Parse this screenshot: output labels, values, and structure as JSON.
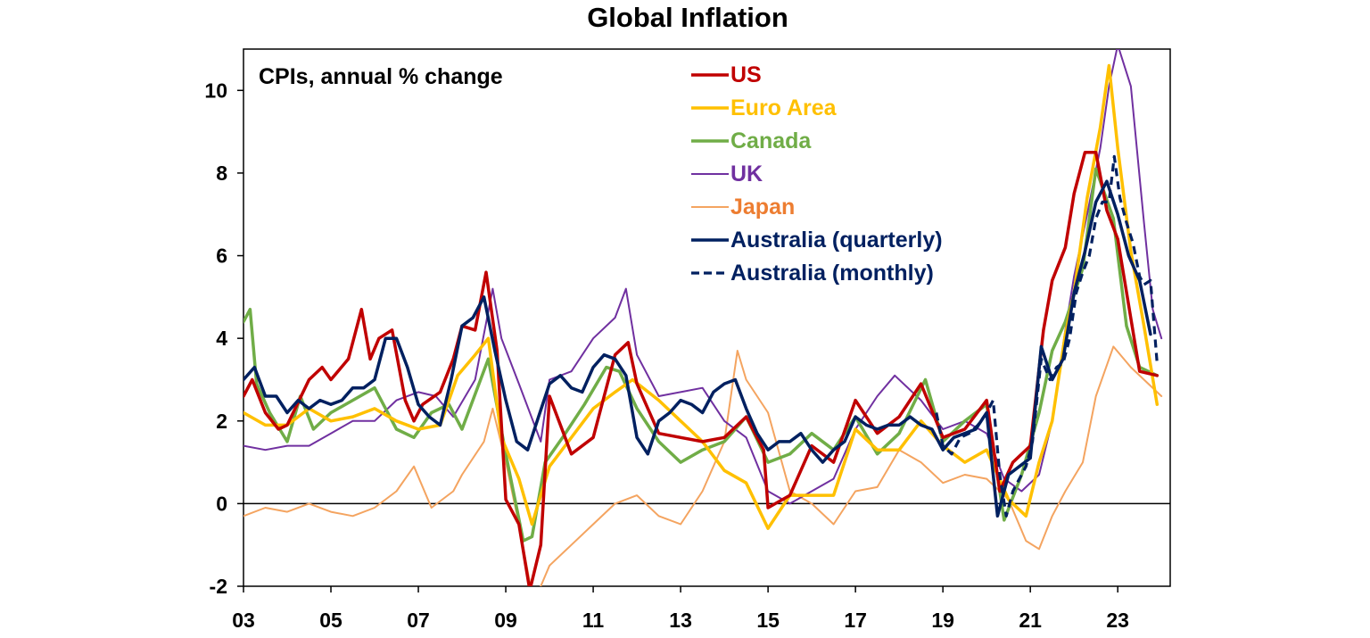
{
  "chart_data": {
    "type": "line",
    "title": "Global Inflation",
    "subtitle": "CPIs, annual % change",
    "xlabel": "",
    "ylabel": "",
    "x_range": [
      2003.0,
      2024.2
    ],
    "ylim": [
      -2,
      11
    ],
    "y_ticks": [
      -2,
      0,
      2,
      4,
      6,
      8,
      10
    ],
    "x_ticks": [
      {
        "value": 2003,
        "label": "03"
      },
      {
        "value": 2005,
        "label": "05"
      },
      {
        "value": 2007,
        "label": "07"
      },
      {
        "value": 2009,
        "label": "09"
      },
      {
        "value": 2011,
        "label": "11"
      },
      {
        "value": 2013,
        "label": "13"
      },
      {
        "value": 2015,
        "label": "15"
      },
      {
        "value": 2017,
        "label": "17"
      },
      {
        "value": 2019,
        "label": "19"
      },
      {
        "value": 2021,
        "label": "21"
      },
      {
        "value": 2023,
        "label": "23"
      }
    ],
    "grid": false,
    "legend_position": "top-center",
    "series": [
      {
        "name": "US",
        "color": "#c00000",
        "dash": false,
        "width": 3.5,
        "x": [
          2003.0,
          2003.2,
          2003.5,
          2003.8,
          2004.0,
          2004.5,
          2004.8,
          2005.0,
          2005.4,
          2005.7,
          2005.9,
          2006.1,
          2006.4,
          2006.7,
          2006.9,
          2007.1,
          2007.5,
          2007.8,
          2008.0,
          2008.3,
          2008.55,
          2008.8,
          2009.0,
          2009.3,
          2009.55,
          2009.8,
          2010.0,
          2010.5,
          2011.0,
          2011.5,
          2011.8,
          2012.0,
          2012.5,
          2013.0,
          2013.5,
          2014.0,
          2014.5,
          2014.9,
          2015.0,
          2015.5,
          2016.0,
          2016.5,
          2017.0,
          2017.5,
          2018.0,
          2018.5,
          2019.0,
          2019.5,
          2020.0,
          2020.3,
          2020.6,
          2021.0,
          2021.3,
          2021.5,
          2021.8,
          2022.0,
          2022.25,
          2022.5,
          2022.75,
          2023.0,
          2023.5,
          2023.9
        ],
        "y": [
          2.6,
          3.0,
          2.2,
          1.8,
          1.9,
          3.0,
          3.3,
          3.0,
          3.5,
          4.7,
          3.5,
          4.0,
          4.2,
          2.5,
          2.0,
          2.4,
          2.7,
          3.5,
          4.3,
          4.2,
          5.6,
          3.7,
          0.1,
          -0.5,
          -2.1,
          -1.0,
          2.6,
          1.2,
          1.6,
          3.6,
          3.9,
          2.9,
          1.7,
          1.6,
          1.5,
          1.6,
          2.1,
          1.3,
          -0.1,
          0.2,
          1.4,
          1.0,
          2.5,
          1.7,
          2.1,
          2.9,
          1.6,
          1.8,
          2.5,
          0.3,
          1.0,
          1.4,
          4.2,
          5.4,
          6.2,
          7.5,
          8.5,
          8.5,
          7.1,
          6.4,
          3.2,
          3.1
        ]
      },
      {
        "name": "Euro Area",
        "color": "#ffc000",
        "dash": false,
        "width": 3.5,
        "x": [
          2003.0,
          2003.5,
          2004.0,
          2004.5,
          2005.0,
          2005.5,
          2006.0,
          2006.5,
          2007.0,
          2007.5,
          2007.9,
          2008.3,
          2008.6,
          2008.9,
          2009.3,
          2009.6,
          2010.0,
          2010.5,
          2011.0,
          2011.5,
          2011.9,
          2012.5,
          2013.0,
          2013.5,
          2014.0,
          2014.5,
          2015.0,
          2015.5,
          2016.0,
          2016.5,
          2017.0,
          2017.5,
          2018.0,
          2018.5,
          2019.0,
          2019.5,
          2020.0,
          2020.5,
          2020.9,
          2021.2,
          2021.5,
          2021.8,
          2022.0,
          2022.3,
          2022.6,
          2022.8,
          2023.0,
          2023.3,
          2023.6,
          2023.9
        ],
        "y": [
          2.2,
          1.9,
          1.9,
          2.3,
          2.0,
          2.1,
          2.3,
          2.0,
          1.8,
          1.9,
          3.1,
          3.6,
          4.0,
          1.6,
          0.6,
          -0.5,
          0.9,
          1.6,
          2.3,
          2.7,
          3.0,
          2.5,
          2.0,
          1.5,
          0.8,
          0.5,
          -0.6,
          0.2,
          0.2,
          0.2,
          1.8,
          1.3,
          1.3,
          2.0,
          1.4,
          1.0,
          1.3,
          0.1,
          -0.3,
          1.0,
          2.0,
          4.1,
          5.1,
          7.4,
          9.1,
          10.6,
          8.6,
          6.1,
          4.3,
          2.4
        ]
      },
      {
        "name": "Canada",
        "color": "#70ad47",
        "dash": false,
        "width": 3.5,
        "x": [
          2003.0,
          2003.15,
          2003.3,
          2003.6,
          2004.0,
          2004.3,
          2004.6,
          2005.0,
          2005.5,
          2006.0,
          2006.5,
          2006.9,
          2007.3,
          2007.7,
          2008.0,
          2008.6,
          2009.0,
          2009.4,
          2009.6,
          2009.9,
          2010.3,
          2010.8,
          2011.3,
          2011.6,
          2012.0,
          2012.5,
          2013.0,
          2013.5,
          2014.0,
          2014.5,
          2015.0,
          2015.5,
          2016.0,
          2016.5,
          2017.0,
          2017.5,
          2018.0,
          2018.6,
          2019.0,
          2019.5,
          2020.0,
          2020.4,
          2020.8,
          2021.2,
          2021.5,
          2021.8,
          2022.2,
          2022.5,
          2022.9,
          2023.2,
          2023.5,
          2023.9
        ],
        "y": [
          4.4,
          4.7,
          2.9,
          2.2,
          1.5,
          2.6,
          1.8,
          2.2,
          2.5,
          2.8,
          1.8,
          1.6,
          2.2,
          2.4,
          1.8,
          3.5,
          1.2,
          -0.9,
          -0.8,
          1.0,
          1.6,
          2.4,
          3.3,
          3.2,
          2.3,
          1.5,
          1.0,
          1.3,
          1.5,
          2.1,
          1.0,
          1.2,
          1.7,
          1.3,
          2.1,
          1.2,
          1.7,
          3.0,
          1.5,
          2.0,
          2.4,
          -0.4,
          0.7,
          2.2,
          3.7,
          4.4,
          5.7,
          8.1,
          6.9,
          4.3,
          3.3,
          3.1
        ]
      },
      {
        "name": "UK",
        "color": "#7030a0",
        "dash": false,
        "width": 2,
        "x": [
          2003.0,
          2003.5,
          2004.0,
          2004.5,
          2005.0,
          2005.5,
          2006.0,
          2006.5,
          2007.0,
          2007.4,
          2007.8,
          2008.3,
          2008.7,
          2008.9,
          2009.3,
          2009.8,
          2010.0,
          2010.5,
          2011.0,
          2011.5,
          2011.75,
          2012.0,
          2012.5,
          2013.0,
          2013.5,
          2014.0,
          2014.5,
          2015.0,
          2015.5,
          2016.0,
          2016.5,
          2017.0,
          2017.5,
          2017.9,
          2018.5,
          2019.0,
          2019.5,
          2020.0,
          2020.4,
          2020.8,
          2021.2,
          2021.5,
          2021.8,
          2022.0,
          2022.3,
          2022.6,
          2022.8,
          2023.0,
          2023.3,
          2023.6,
          2023.8,
          2024.0
        ],
        "y": [
          1.4,
          1.3,
          1.4,
          1.4,
          1.7,
          2.0,
          2.0,
          2.5,
          2.7,
          2.6,
          2.1,
          3.0,
          5.2,
          4.0,
          2.9,
          1.5,
          3.0,
          3.2,
          4.0,
          4.5,
          5.2,
          3.6,
          2.6,
          2.7,
          2.8,
          2.0,
          1.6,
          0.3,
          0.0,
          0.3,
          0.6,
          1.8,
          2.6,
          3.1,
          2.5,
          1.8,
          2.0,
          1.7,
          0.6,
          0.3,
          0.7,
          2.0,
          4.2,
          5.5,
          7.0,
          8.6,
          10.1,
          11.1,
          10.1,
          6.8,
          4.7,
          4.0
        ]
      },
      {
        "name": "Japan",
        "color": "#f4a460",
        "dash": false,
        "width": 2,
        "x": [
          2003.0,
          2003.5,
          2004.0,
          2004.5,
          2005.0,
          2005.5,
          2006.0,
          2006.5,
          2006.9,
          2007.3,
          2007.8,
          2008.0,
          2008.5,
          2008.7,
          2009.0,
          2009.3,
          2009.6,
          2009.8,
          2010.0,
          2010.5,
          2011.0,
          2011.5,
          2012.0,
          2012.5,
          2013.0,
          2013.5,
          2014.0,
          2014.3,
          2014.5,
          2015.0,
          2015.5,
          2016.0,
          2016.5,
          2017.0,
          2017.5,
          2018.0,
          2018.5,
          2019.0,
          2019.5,
          2020.0,
          2020.5,
          2020.9,
          2021.2,
          2021.5,
          2021.8,
          2022.2,
          2022.5,
          2022.9,
          2023.3,
          2023.6,
          2024.0
        ],
        "y": [
          -0.3,
          -0.1,
          -0.2,
          0.0,
          -0.2,
          -0.3,
          -0.1,
          0.3,
          0.9,
          -0.1,
          0.3,
          0.7,
          1.5,
          2.3,
          1.0,
          -0.5,
          -2.2,
          -2.0,
          -1.5,
          -1.0,
          -0.5,
          0.0,
          0.2,
          -0.3,
          -0.5,
          0.3,
          1.5,
          3.7,
          3.0,
          2.2,
          0.3,
          0.0,
          -0.5,
          0.3,
          0.4,
          1.3,
          1.0,
          0.5,
          0.7,
          0.6,
          0.1,
          -0.9,
          -1.1,
          -0.3,
          0.3,
          1.0,
          2.6,
          3.8,
          3.3,
          3.0,
          2.6
        ]
      },
      {
        "name": "Australia (quarterly)",
        "color": "#002060",
        "dash": false,
        "width": 3.5,
        "x": [
          2003.0,
          2003.25,
          2003.5,
          2003.75,
          2004.0,
          2004.25,
          2004.5,
          2004.75,
          2005.0,
          2005.25,
          2005.5,
          2005.75,
          2006.0,
          2006.25,
          2006.5,
          2006.75,
          2007.0,
          2007.25,
          2007.5,
          2007.75,
          2008.0,
          2008.25,
          2008.5,
          2008.75,
          2009.0,
          2009.25,
          2009.5,
          2009.75,
          2010.0,
          2010.25,
          2010.5,
          2010.75,
          2011.0,
          2011.25,
          2011.5,
          2011.75,
          2012.0,
          2012.25,
          2012.5,
          2012.75,
          2013.0,
          2013.25,
          2013.5,
          2013.75,
          2014.0,
          2014.25,
          2014.5,
          2014.75,
          2015.0,
          2015.25,
          2015.5,
          2015.75,
          2016.0,
          2016.25,
          2016.5,
          2016.75,
          2017.0,
          2017.25,
          2017.5,
          2017.75,
          2018.0,
          2018.25,
          2018.5,
          2018.75,
          2019.0,
          2019.25,
          2019.5,
          2019.75,
          2020.0,
          2020.25,
          2020.5,
          2020.75,
          2021.0,
          2021.25,
          2021.5,
          2021.75,
          2022.0,
          2022.25,
          2022.5,
          2022.75,
          2023.0,
          2023.25,
          2023.5,
          2023.75
        ],
        "y": [
          3.0,
          3.3,
          2.6,
          2.6,
          2.2,
          2.5,
          2.3,
          2.5,
          2.4,
          2.5,
          2.8,
          2.8,
          3.0,
          4.0,
          4.0,
          3.3,
          2.4,
          2.1,
          1.9,
          3.0,
          4.3,
          4.5,
          5.0,
          3.7,
          2.5,
          1.5,
          1.3,
          2.1,
          2.9,
          3.1,
          2.8,
          2.7,
          3.3,
          3.6,
          3.5,
          3.1,
          1.6,
          1.2,
          2.0,
          2.2,
          2.5,
          2.4,
          2.2,
          2.7,
          2.9,
          3.0,
          2.3,
          1.7,
          1.3,
          1.5,
          1.5,
          1.7,
          1.3,
          1.0,
          1.3,
          1.5,
          2.1,
          1.9,
          1.8,
          1.9,
          1.9,
          2.1,
          1.9,
          1.8,
          1.3,
          1.6,
          1.7,
          1.8,
          2.2,
          -0.3,
          0.7,
          0.9,
          1.1,
          3.8,
          3.0,
          3.5,
          5.1,
          6.1,
          7.3,
          7.8,
          7.0,
          6.0,
          5.4,
          4.1
        ]
      },
      {
        "name": "Australia (monthly)",
        "color": "#002060",
        "dash": true,
        "width": 3.2,
        "x": [
          2018.85,
          2019.0,
          2019.2,
          2019.4,
          2019.6,
          2019.8,
          2020.0,
          2020.15,
          2020.3,
          2020.45,
          2020.6,
          2020.75,
          2020.9,
          2021.05,
          2021.25,
          2021.45,
          2021.6,
          2021.75,
          2021.9,
          2022.05,
          2022.2,
          2022.35,
          2022.5,
          2022.65,
          2022.8,
          2022.92,
          2023.05,
          2023.2,
          2023.35,
          2023.5,
          2023.6,
          2023.75,
          2023.9
        ],
        "y": [
          2.2,
          1.4,
          1.2,
          1.6,
          1.7,
          1.9,
          2.2,
          2.5,
          0.7,
          -0.3,
          0.3,
          0.6,
          0.9,
          1.5,
          3.5,
          3.0,
          3.3,
          3.4,
          4.0,
          5.1,
          5.6,
          6.0,
          6.9,
          7.3,
          7.3,
          8.4,
          7.4,
          6.8,
          6.3,
          5.5,
          5.3,
          5.4,
          3.4
        ]
      }
    ]
  }
}
